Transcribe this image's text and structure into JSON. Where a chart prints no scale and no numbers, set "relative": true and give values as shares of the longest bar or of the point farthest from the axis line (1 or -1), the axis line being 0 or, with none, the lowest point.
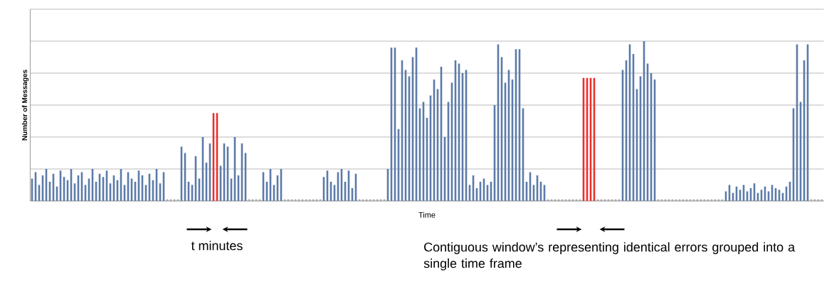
{
  "chart_data": {
    "type": "bar",
    "relative": true,
    "xlabel": "Time",
    "ylabel": "Number of Messages",
    "grid": "y",
    "annotations": [
      "t minutes",
      "Contiguous window’s representing identical errors grouped into a single time frame"
    ],
    "categories": [
      null,
      null,
      null,
      null,
      null,
      null,
      null,
      null,
      null,
      null,
      null,
      null,
      null,
      null,
      null,
      null,
      null,
      null,
      null,
      null,
      null,
      null,
      null,
      null,
      null,
      null,
      null,
      null,
      null,
      null,
      null,
      null,
      null,
      null,
      null,
      null,
      null,
      null,
      null,
      null,
      null,
      null,
      null,
      null,
      null,
      null,
      null,
      null,
      null,
      null,
      null,
      null,
      null,
      null,
      null,
      null,
      null,
      null,
      null,
      null,
      null,
      null,
      null,
      null,
      null,
      null,
      null,
      null,
      null,
      null,
      null,
      null,
      null,
      null,
      null,
      null,
      null,
      null,
      null,
      null,
      null,
      null,
      null,
      null,
      null,
      null,
      null,
      null,
      null,
      null,
      null,
      null,
      null,
      null,
      null,
      null,
      null,
      null,
      null,
      null,
      null,
      null,
      null,
      null,
      null,
      null,
      null,
      null,
      null,
      null,
      null,
      null,
      null,
      null,
      null,
      null,
      null,
      null,
      null,
      null,
      null,
      null,
      null,
      null,
      null,
      null,
      null,
      null,
      null,
      null,
      null,
      null,
      null,
      null,
      null,
      null,
      null,
      null,
      null,
      null,
      null,
      null,
      null,
      null,
      null,
      null,
      null,
      null,
      null,
      null,
      null,
      null,
      null,
      null,
      null,
      null,
      null,
      null,
      null,
      null,
      null,
      null,
      null,
      null,
      null,
      null,
      null,
      null,
      null,
      null,
      null,
      null,
      null,
      null,
      null,
      null,
      null,
      null,
      null,
      null,
      null,
      null,
      null,
      null,
      null,
      null,
      null,
      null,
      null,
      null,
      null,
      null,
      null,
      null,
      null,
      null,
      null,
      null,
      null,
      null,
      null,
      null,
      null,
      null,
      null,
      null,
      null,
      null,
      null,
      null,
      null,
      null,
      null,
      null,
      null,
      null,
      null,
      null,
      null,
      null,
      null,
      null,
      null
    ],
    "values": [
      0.14,
      0.18,
      0.1,
      0.16,
      0.2,
      0.12,
      0.17,
      0.09,
      0.19,
      0.15,
      0.13,
      0.2,
      0.11,
      0.16,
      0.18,
      0.1,
      0.14,
      0.2,
      0.12,
      0.17,
      0.15,
      0.19,
      0.11,
      0.16,
      0.13,
      0.2,
      0.1,
      0.18,
      0.14,
      0.12,
      0.19,
      0.16,
      0.1,
      0.17,
      0.13,
      0.2,
      0.11,
      0.18,
      0.01,
      0.01,
      0.01,
      0.01,
      0.34,
      0.3,
      0.12,
      0.1,
      0.28,
      0.14,
      0.4,
      0.24,
      0.36,
      0.55,
      0.55,
      0.22,
      0.36,
      0.34,
      0.14,
      0.4,
      0.16,
      0.36,
      0.3,
      0.01,
      0.01,
      0.01,
      0.01,
      0.18,
      0.12,
      0.2,
      0.1,
      0.16,
      0.2,
      0.01,
      0.01,
      0.01,
      0.01,
      0.01,
      0.01,
      0.01,
      0.01,
      0.01,
      0.01,
      0.01,
      0.15,
      0.19,
      0.12,
      0.1,
      0.18,
      0.2,
      0.12,
      0.19,
      0.08,
      0.17,
      0.01,
      0.01,
      0.01,
      0.01,
      0.01,
      0.01,
      0.01,
      0.01,
      0.2,
      0.96,
      0.96,
      0.45,
      0.88,
      0.82,
      0.78,
      0.9,
      0.96,
      0.58,
      0.62,
      0.52,
      0.66,
      0.76,
      0.7,
      0.84,
      0.4,
      0.62,
      0.74,
      0.88,
      0.86,
      0.8,
      0.82,
      0.1,
      0.16,
      0.08,
      0.12,
      0.14,
      0.1,
      0.12,
      0.6,
      0.98,
      0.9,
      0.74,
      0.82,
      0.76,
      0.95,
      0.95,
      0.58,
      0.12,
      0.18,
      0.1,
      0.16,
      0.12,
      0.1,
      0.01,
      0.01,
      0.01,
      0.01,
      0.01,
      0.01,
      0.01,
      0.01,
      0.01,
      0.01,
      0.77,
      0.77,
      0.77,
      0.77,
      0.01,
      0.01,
      0.01,
      0.01,
      0.01,
      0.01,
      0.01,
      0.82,
      0.88,
      0.98,
      0.92,
      0.7,
      0.78,
      1.0,
      0.86,
      0.8,
      0.76,
      0.01,
      0.01,
      0.01,
      0.01,
      0.01,
      0.01,
      0.01,
      0.01,
      0.01,
      0.01,
      0.01,
      0.01,
      0.01,
      0.01,
      0.01,
      0.01,
      0.01,
      0.01,
      0.01,
      0.06,
      0.1,
      0.05,
      0.09,
      0.07,
      0.1,
      0.06,
      0.08,
      0.11,
      0.05,
      0.07,
      0.09,
      0.06,
      0.1,
      0.08,
      0.07,
      0.05,
      0.09,
      0.12,
      0.58,
      0.98,
      0.62,
      0.88,
      0.98,
      0.01,
      0.01,
      0.01,
      0.01
    ],
    "colors": [
      "#5b7aa8",
      "#5b7aa8",
      "#5b7aa8",
      "#5b7aa8",
      "#5b7aa8",
      "#5b7aa8",
      "#5b7aa8",
      "#5b7aa8",
      "#5b7aa8",
      "#5b7aa8",
      "#5b7aa8",
      "#5b7aa8",
      "#5b7aa8",
      "#5b7aa8",
      "#5b7aa8",
      "#5b7aa8",
      "#5b7aa8",
      "#5b7aa8",
      "#5b7aa8",
      "#5b7aa8",
      "#5b7aa8",
      "#5b7aa8",
      "#5b7aa8",
      "#5b7aa8",
      "#5b7aa8",
      "#5b7aa8",
      "#5b7aa8",
      "#5b7aa8",
      "#5b7aa8",
      "#5b7aa8",
      "#5b7aa8",
      "#5b7aa8",
      "#5b7aa8",
      "#5b7aa8",
      "#5b7aa8",
      "#5b7aa8",
      "#5b7aa8",
      "#5b7aa8",
      "#a6a6a6",
      "#a6a6a6",
      "#a6a6a6",
      "#a6a6a6",
      "#5b7aa8",
      "#5b7aa8",
      "#5b7aa8",
      "#5b7aa8",
      "#5b7aa8",
      "#5b7aa8",
      "#5b7aa8",
      "#5b7aa8",
      "#5b7aa8",
      "#e8302c",
      "#e8302c",
      "#5b7aa8",
      "#5b7aa8",
      "#5b7aa8",
      "#5b7aa8",
      "#5b7aa8",
      "#5b7aa8",
      "#5b7aa8",
      "#5b7aa8",
      "#a6a6a6",
      "#a6a6a6",
      "#a6a6a6",
      "#a6a6a6",
      "#5b7aa8",
      "#5b7aa8",
      "#5b7aa8",
      "#5b7aa8",
      "#5b7aa8",
      "#5b7aa8",
      "#a6a6a6",
      "#a6a6a6",
      "#a6a6a6",
      "#a6a6a6",
      "#a6a6a6",
      "#a6a6a6",
      "#a6a6a6",
      "#a6a6a6",
      "#a6a6a6",
      "#a6a6a6",
      "#a6a6a6",
      "#5b7aa8",
      "#5b7aa8",
      "#5b7aa8",
      "#5b7aa8",
      "#5b7aa8",
      "#5b7aa8",
      "#5b7aa8",
      "#5b7aa8",
      "#5b7aa8",
      "#5b7aa8",
      "#a6a6a6",
      "#a6a6a6",
      "#a6a6a6",
      "#a6a6a6",
      "#a6a6a6",
      "#a6a6a6",
      "#a6a6a6",
      "#a6a6a6",
      "#5b7aa8",
      "#5b7aa8",
      "#5b7aa8",
      "#5b7aa8",
      "#5b7aa8",
      "#5b7aa8",
      "#5b7aa8",
      "#5b7aa8",
      "#5b7aa8",
      "#5b7aa8",
      "#5b7aa8",
      "#5b7aa8",
      "#5b7aa8",
      "#5b7aa8",
      "#5b7aa8",
      "#5b7aa8",
      "#5b7aa8",
      "#5b7aa8",
      "#5b7aa8",
      "#5b7aa8",
      "#5b7aa8",
      "#5b7aa8",
      "#5b7aa8",
      "#5b7aa8",
      "#5b7aa8",
      "#5b7aa8",
      "#5b7aa8",
      "#5b7aa8",
      "#5b7aa8",
      "#5b7aa8",
      "#5b7aa8",
      "#5b7aa8",
      "#5b7aa8",
      "#5b7aa8",
      "#5b7aa8",
      "#5b7aa8",
      "#5b7aa8",
      "#5b7aa8",
      "#5b7aa8",
      "#5b7aa8",
      "#5b7aa8",
      "#5b7aa8",
      "#5b7aa8",
      "#5b7aa8",
      "#5b7aa8",
      "#a6a6a6",
      "#a6a6a6",
      "#a6a6a6",
      "#a6a6a6",
      "#a6a6a6",
      "#a6a6a6",
      "#a6a6a6",
      "#a6a6a6",
      "#a6a6a6",
      "#a6a6a6",
      "#e8302c",
      "#e8302c",
      "#e8302c",
      "#e8302c",
      "#a6a6a6",
      "#a6a6a6",
      "#a6a6a6",
      "#a6a6a6",
      "#a6a6a6",
      "#a6a6a6",
      "#a6a6a6",
      "#5b7aa8",
      "#5b7aa8",
      "#5b7aa8",
      "#5b7aa8",
      "#5b7aa8",
      "#5b7aa8",
      "#5b7aa8",
      "#5b7aa8",
      "#5b7aa8",
      "#5b7aa8",
      "#a6a6a6",
      "#a6a6a6",
      "#a6a6a6",
      "#a6a6a6",
      "#a6a6a6",
      "#a6a6a6",
      "#a6a6a6",
      "#a6a6a6",
      "#a6a6a6",
      "#a6a6a6",
      "#a6a6a6",
      "#a6a6a6",
      "#a6a6a6",
      "#a6a6a6",
      "#a6a6a6",
      "#a6a6a6",
      "#a6a6a6",
      "#a6a6a6",
      "#a6a6a6",
      "#5b7aa8",
      "#5b7aa8",
      "#5b7aa8",
      "#5b7aa8",
      "#5b7aa8",
      "#5b7aa8",
      "#5b7aa8",
      "#5b7aa8",
      "#5b7aa8",
      "#5b7aa8",
      "#5b7aa8",
      "#5b7aa8",
      "#5b7aa8",
      "#5b7aa8",
      "#5b7aa8",
      "#5b7aa8",
      "#5b7aa8",
      "#5b7aa8",
      "#5b7aa8",
      "#5b7aa8",
      "#5b7aa8",
      "#5b7aa8",
      "#5b7aa8",
      "#5b7aa8",
      "#a6a6a6",
      "#a6a6a6",
      "#a6a6a6",
      "#a6a6a6"
    ]
  }
}
